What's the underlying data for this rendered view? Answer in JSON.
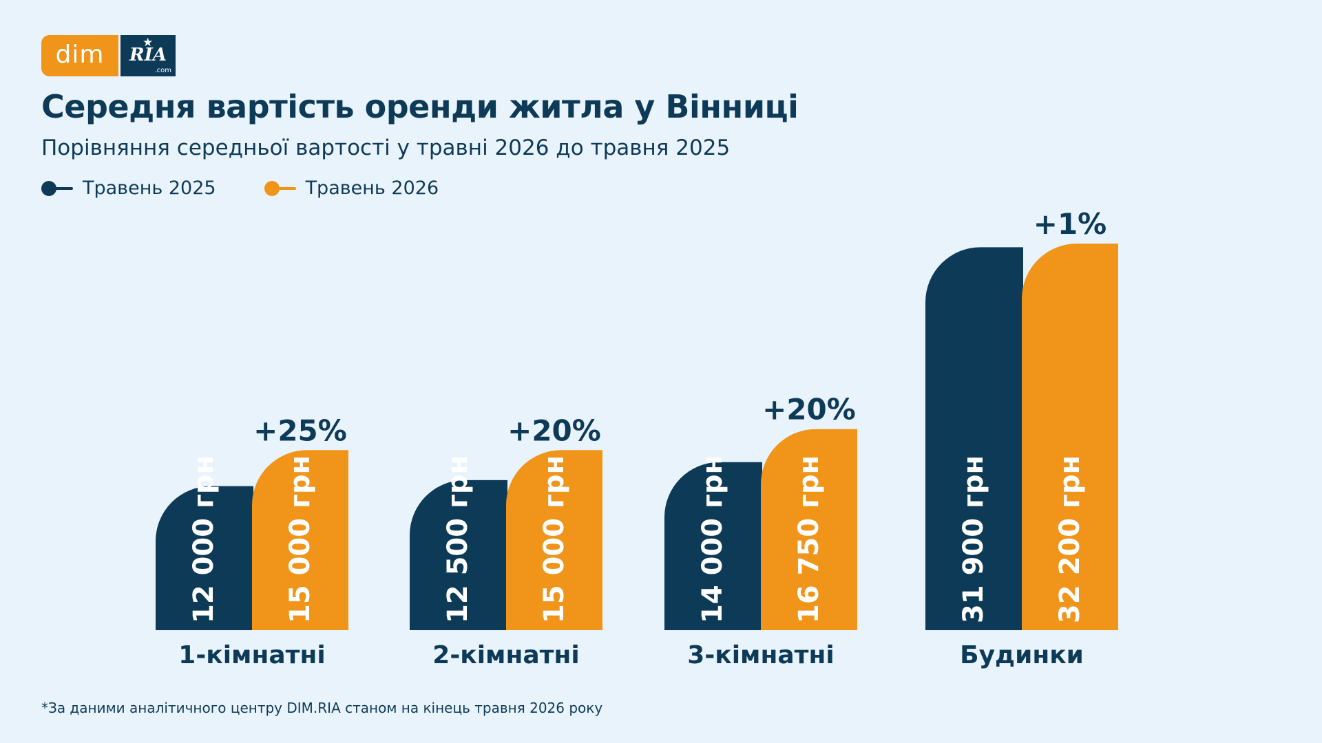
{
  "logo": {
    "left_text": "dim",
    "right_text": "RIA",
    "right_suffix": ".com"
  },
  "title": "Середня вартість оренди житла у Вінниці",
  "subtitle": "Порівняння середньої вартості у травні 2026 до травня 2025",
  "legend": [
    {
      "label": "Травень 2025",
      "color": "#0d3a57"
    },
    {
      "label": "Травень 2026",
      "color": "#f0941a"
    }
  ],
  "footnote": "*За даними аналітичного центру DIM.RIA станом на кінець травня 2026 року",
  "chart_data": {
    "type": "bar",
    "categories": [
      "1-кімнатні",
      "2-кімнатні",
      "3-кімнатні",
      "Будинки"
    ],
    "series": [
      {
        "name": "Травень 2025",
        "color": "#0d3a57",
        "values": [
          12000,
          12500,
          14000,
          31900
        ],
        "labels": [
          "12 000 грн",
          "12 500 грн",
          "14 000 грн",
          "31 900 грн"
        ]
      },
      {
        "name": "Травень 2026",
        "color": "#f0941a",
        "values": [
          15000,
          15000,
          16750,
          32200
        ],
        "labels": [
          "15 000 грн",
          "15 000 грн",
          "16 750 грн",
          "32 200 грн"
        ]
      }
    ],
    "change_labels": [
      "+25%",
      "+20%",
      "+20%",
      "+1%"
    ],
    "grid": false,
    "legend_position": "top-left"
  }
}
